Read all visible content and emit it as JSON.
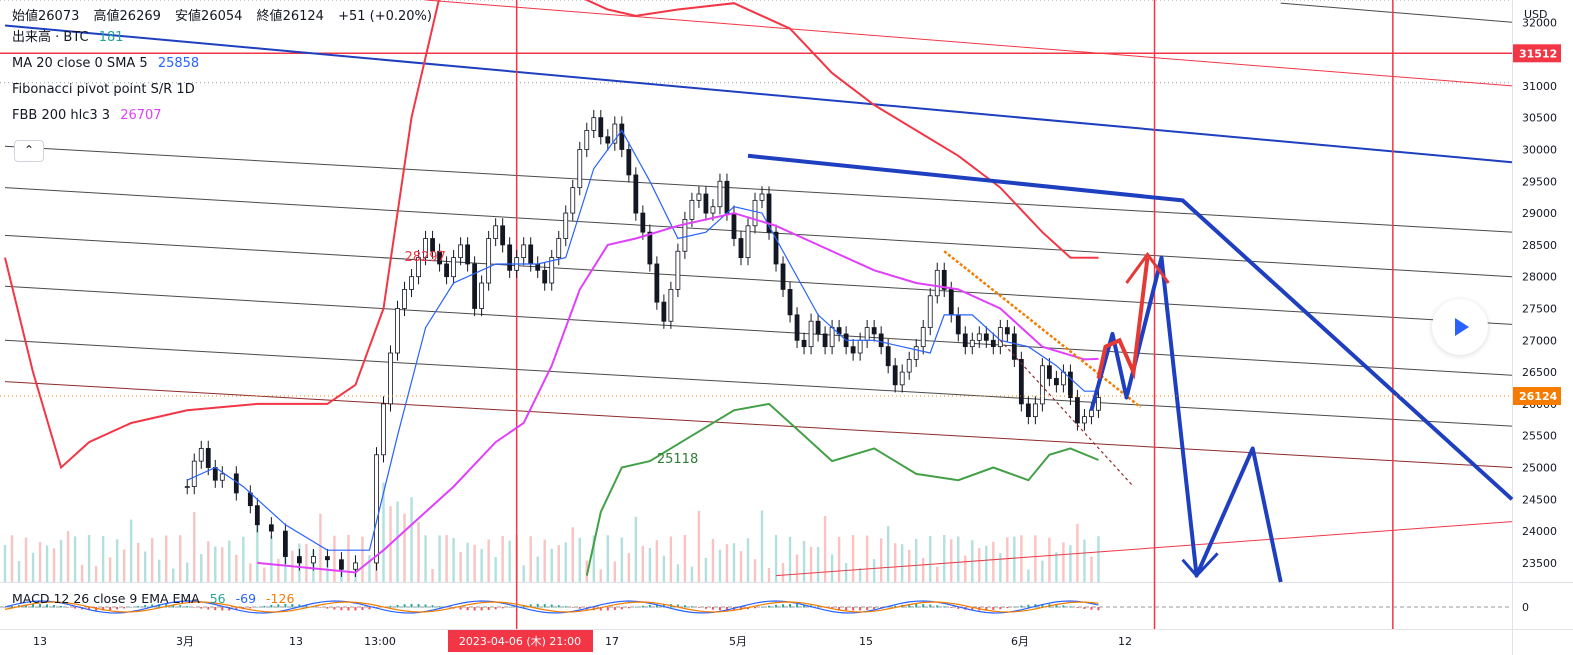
{
  "ohlc": {
    "open_label": "始値",
    "open": "26073",
    "high_label": "高値",
    "high": "26269",
    "low_label": "安値",
    "low": "26054",
    "close_label": "終値",
    "close": "26124",
    "change": "+51 (+0.20%)"
  },
  "legend": [
    {
      "name": "出来高 · BTC",
      "value": "181",
      "value_color": "#26a69a"
    },
    {
      "name": "MA 20 close 0 SMA 5",
      "value": "25858",
      "value_color": "#2962ff"
    },
    {
      "name": "Fibonacci pivot point S/R 1D",
      "value": "",
      "value_color": "#131722"
    },
    {
      "name": "FBB 200 hlc3 3",
      "value": "26707",
      "value_color": "#e040fb"
    }
  ],
  "collapse_glyph": "⌃",
  "macd": {
    "name": "MACD 12 26 close 9 EMA EMA",
    "v1": "56",
    "v2": "-69",
    "v3": "-126"
  },
  "colors": {
    "up": "#26a69a",
    "down": "#ef5350",
    "red_line": "#f23645",
    "blue_line": "#1e3fbf",
    "ma": "#2962ff",
    "fbb_mid": "#e040fb",
    "fbb_lower": "#43a047",
    "price_tag": "#f57c00"
  },
  "chart_data": {
    "type": "candlestick",
    "currency": "USD",
    "y_ticks": [
      32000,
      31500,
      31000,
      30500,
      30000,
      29500,
      29000,
      28500,
      28000,
      27500,
      27000,
      26500,
      26000,
      25500,
      25000,
      24500,
      24000,
      23500
    ],
    "y_range": [
      23200,
      32350
    ],
    "x_ticks": [
      "13",
      "3月",
      "13",
      "13:00",
      "17",
      "5月",
      "15",
      "6月",
      "12"
    ],
    "crosshair_date": "2023-04-06 (木)  21:00",
    "price_labels": [
      {
        "text": "31512",
        "value": 31512,
        "color": "#f23645"
      },
      {
        "text": "26124",
        "value": 26124,
        "color": "#f57c00"
      }
    ],
    "annotations": [
      {
        "text": "28297",
        "value": 28297,
        "color": "#f23645"
      },
      {
        "text": "25118",
        "value": 25118,
        "color": "#2e7d32"
      }
    ],
    "macd_zero_label": "0",
    "candles": [
      [
        26,
        24700
      ],
      [
        27,
        25100
      ],
      [
        28,
        25300
      ],
      [
        29,
        25000
      ],
      [
        30,
        24800
      ],
      [
        31,
        24900
      ],
      [
        33,
        24600
      ],
      [
        35,
        24400
      ],
      [
        36,
        24100
      ],
      [
        38,
        24000
      ],
      [
        40,
        23600
      ],
      [
        42,
        23500
      ],
      [
        44,
        23600
      ],
      [
        46,
        23550
      ],
      [
        48,
        23400
      ],
      [
        50,
        23500
      ],
      [
        53,
        25200
      ],
      [
        54,
        26000
      ],
      [
        55,
        26800
      ],
      [
        56,
        27500
      ],
      [
        57,
        27800
      ],
      [
        58,
        28000
      ],
      [
        59,
        28300
      ],
      [
        60,
        28600
      ],
      [
        61,
        28400
      ],
      [
        62,
        28200
      ],
      [
        63,
        28000
      ],
      [
        64,
        28300
      ],
      [
        65,
        28500
      ],
      [
        66,
        28200
      ],
      [
        67,
        27500
      ],
      [
        68,
        27900
      ],
      [
        69,
        28600
      ],
      [
        70,
        28800
      ],
      [
        71,
        28500
      ],
      [
        72,
        28100
      ],
      [
        73,
        28300
      ],
      [
        74,
        28500
      ],
      [
        75,
        28200
      ],
      [
        76,
        28100
      ],
      [
        77,
        27900
      ],
      [
        78,
        28300
      ],
      [
        79,
        28600
      ],
      [
        80,
        29000
      ],
      [
        81,
        29400
      ],
      [
        82,
        30000
      ],
      [
        83,
        30300
      ],
      [
        84,
        30500
      ],
      [
        85,
        30200
      ],
      [
        86,
        30100
      ],
      [
        87,
        30400
      ],
      [
        88,
        30000
      ],
      [
        89,
        29600
      ],
      [
        90,
        29000
      ],
      [
        91,
        28700
      ],
      [
        92,
        28200
      ],
      [
        93,
        27600
      ],
      [
        94,
        27300
      ],
      [
        95,
        27800
      ],
      [
        96,
        28400
      ],
      [
        97,
        28900
      ],
      [
        98,
        29200
      ],
      [
        99,
        29300
      ],
      [
        100,
        29000
      ],
      [
        101,
        29100
      ],
      [
        102,
        29500
      ],
      [
        103,
        29000
      ],
      [
        104,
        28600
      ],
      [
        105,
        28300
      ],
      [
        106,
        28800
      ],
      [
        107,
        29200
      ],
      [
        108,
        29300
      ],
      [
        109,
        28700
      ],
      [
        110,
        28200
      ],
      [
        111,
        27800
      ],
      [
        112,
        27400
      ],
      [
        113,
        27000
      ],
      [
        114,
        26900
      ],
      [
        115,
        27300
      ],
      [
        116,
        27100
      ],
      [
        117,
        26900
      ],
      [
        118,
        27200
      ],
      [
        119,
        27100
      ],
      [
        120,
        26900
      ],
      [
        121,
        26800
      ],
      [
        122,
        27000
      ],
      [
        123,
        27200
      ],
      [
        124,
        27100
      ],
      [
        125,
        26900
      ],
      [
        126,
        26600
      ],
      [
        127,
        26300
      ],
      [
        128,
        26500
      ],
      [
        129,
        26700
      ],
      [
        130,
        26900
      ],
      [
        131,
        27200
      ],
      [
        132,
        27700
      ],
      [
        133,
        28100
      ],
      [
        134,
        27800
      ],
      [
        135,
        27400
      ],
      [
        136,
        27100
      ],
      [
        137,
        26900
      ],
      [
        138,
        27000
      ],
      [
        139,
        27100
      ],
      [
        140,
        27000
      ],
      [
        141,
        26900
      ],
      [
        142,
        27200
      ],
      [
        143,
        27100
      ],
      [
        144,
        26700
      ],
      [
        145,
        26000
      ],
      [
        146,
        25800
      ],
      [
        147,
        26000
      ],
      [
        148,
        26600
      ],
      [
        149,
        26400
      ],
      [
        150,
        26300
      ],
      [
        151,
        26500
      ],
      [
        152,
        26100
      ],
      [
        153,
        25700
      ],
      [
        154,
        25800
      ],
      [
        155,
        25900
      ],
      [
        156,
        26100
      ]
    ],
    "line_series": [
      {
        "name": "MA 20",
        "color": "#2962ff",
        "values": [
          [
            26,
            24800
          ],
          [
            30,
            25000
          ],
          [
            34,
            24700
          ],
          [
            40,
            24100
          ],
          [
            46,
            23700
          ],
          [
            52,
            23700
          ],
          [
            56,
            25500
          ],
          [
            60,
            27200
          ],
          [
            64,
            27900
          ],
          [
            70,
            28200
          ],
          [
            76,
            28200
          ],
          [
            80,
            28300
          ],
          [
            84,
            29700
          ],
          [
            88,
            30300
          ],
          [
            92,
            29500
          ],
          [
            96,
            28600
          ],
          [
            100,
            28700
          ],
          [
            104,
            29100
          ],
          [
            108,
            29000
          ],
          [
            112,
            28200
          ],
          [
            116,
            27400
          ],
          [
            120,
            27000
          ],
          [
            124,
            27000
          ],
          [
            128,
            26900
          ],
          [
            132,
            26800
          ],
          [
            134,
            27400
          ],
          [
            138,
            27400
          ],
          [
            142,
            27000
          ],
          [
            146,
            26900
          ],
          [
            150,
            26600
          ],
          [
            154,
            26200
          ],
          [
            156,
            26200
          ]
        ]
      },
      {
        "name": "FBB 200 hlc3 3",
        "color": "#e040fb",
        "values": [
          [
            36,
            23500
          ],
          [
            50,
            23350
          ],
          [
            54,
            23700
          ],
          [
            58,
            24100
          ],
          [
            64,
            24700
          ],
          [
            70,
            25400
          ],
          [
            74,
            25700
          ],
          [
            78,
            26600
          ],
          [
            82,
            27800
          ],
          [
            86,
            28500
          ],
          [
            90,
            28600
          ],
          [
            96,
            28800
          ],
          [
            104,
            29000
          ],
          [
            110,
            28800
          ],
          [
            116,
            28500
          ],
          [
            124,
            28100
          ],
          [
            130,
            27900
          ],
          [
            136,
            27800
          ],
          [
            142,
            27500
          ],
          [
            148,
            26900
          ],
          [
            154,
            26700
          ],
          [
            156,
            26707
          ]
        ]
      },
      {
        "name": "FBB lower",
        "color": "#43a047",
        "values": [
          [
            83,
            23300
          ],
          [
            85,
            24300
          ],
          [
            88,
            25000
          ],
          [
            92,
            25100
          ],
          [
            98,
            25500
          ],
          [
            104,
            25900
          ],
          [
            109,
            26000
          ],
          [
            113,
            25600
          ],
          [
            118,
            25100
          ],
          [
            124,
            25300
          ],
          [
            130,
            24900
          ],
          [
            136,
            24800
          ],
          [
            141,
            25000
          ],
          [
            146,
            24800
          ],
          [
            149,
            25200
          ],
          [
            152,
            25300
          ],
          [
            156,
            25118
          ]
        ]
      },
      {
        "name": "FBB upper",
        "color": "#f23645",
        "values": [
          [
            0,
            28300
          ],
          [
            4,
            26500
          ],
          [
            8,
            25000
          ],
          [
            12,
            25400
          ],
          [
            18,
            25700
          ],
          [
            26,
            25900
          ],
          [
            36,
            26000
          ],
          [
            46,
            26000
          ],
          [
            50,
            26300
          ],
          [
            54,
            27500
          ],
          [
            58,
            30500
          ],
          [
            62,
            32400
          ],
          [
            66,
            33200
          ],
          [
            76,
            33200
          ],
          [
            82,
            32400
          ],
          [
            86,
            32200
          ],
          [
            90,
            32100
          ],
          [
            96,
            32200
          ],
          [
            104,
            32300
          ],
          [
            112,
            31900
          ],
          [
            118,
            31200
          ],
          [
            124,
            30700
          ],
          [
            130,
            30300
          ],
          [
            136,
            29900
          ],
          [
            142,
            29400
          ],
          [
            148,
            28700
          ],
          [
            152,
            28300
          ],
          [
            156,
            28297
          ]
        ]
      }
    ],
    "x_count": 215
  }
}
